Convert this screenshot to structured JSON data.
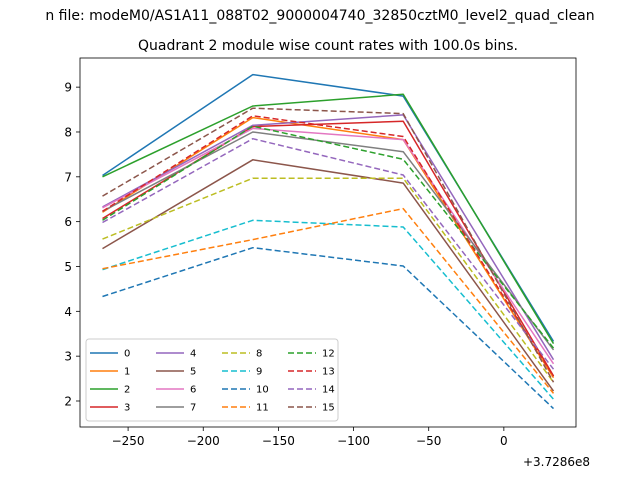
{
  "figure": {
    "suptitle": "n file: modeM0/AS1A11_088T02_9000004740_32850cztM0_level2_quad_clean",
    "title": "Quadrant 2 module wise count rates with 100.0s bins.",
    "x_offset_label": "+3.7286e8"
  },
  "chart_data": {
    "type": "line",
    "title": "Quadrant 2 module wise count rates with 100.0s bins.",
    "xlabel": "",
    "ylabel": "",
    "x": [
      -267,
      -167,
      -67,
      33
    ],
    "xlim": [
      -282,
      48
    ],
    "ylim": [
      1.42,
      9.65
    ],
    "xticks": [
      -250,
      -200,
      -150,
      -100,
      -50,
      0
    ],
    "xtick_labels": [
      "−250",
      "−200",
      "−150",
      "−100",
      "−50",
      "0"
    ],
    "yticks": [
      2,
      3,
      4,
      5,
      6,
      7,
      8,
      9
    ],
    "ytick_labels": [
      "2",
      "3",
      "4",
      "5",
      "6",
      "7",
      "8",
      "9"
    ],
    "grid": false,
    "legend": {
      "position": "lower-left",
      "columns": 4
    },
    "series": [
      {
        "name": "0",
        "color": "#1f77b4",
        "dash": "solid",
        "values": [
          7.03,
          9.28,
          8.8,
          3.33
        ]
      },
      {
        "name": "1",
        "color": "#ff7f0e",
        "dash": "solid",
        "values": [
          6.21,
          8.32,
          7.83,
          2.52
        ]
      },
      {
        "name": "2",
        "color": "#2ca02c",
        "dash": "solid",
        "values": [
          7.0,
          8.58,
          8.84,
          3.28
        ]
      },
      {
        "name": "3",
        "color": "#d62728",
        "dash": "solid",
        "values": [
          6.07,
          8.12,
          8.24,
          2.56
        ]
      },
      {
        "name": "4",
        "color": "#9467bd",
        "dash": "solid",
        "values": [
          6.33,
          8.15,
          8.38,
          2.92
        ]
      },
      {
        "name": "5",
        "color": "#8c564b",
        "dash": "solid",
        "values": [
          5.4,
          7.38,
          6.86,
          2.22
        ]
      },
      {
        "name": "6",
        "color": "#e377c2",
        "dash": "solid",
        "values": [
          6.31,
          8.08,
          7.83,
          2.83
        ]
      },
      {
        "name": "7",
        "color": "#7f7f7f",
        "dash": "solid",
        "values": [
          6.23,
          8.0,
          7.56,
          3.14
        ]
      },
      {
        "name": "8",
        "color": "#bcbd22",
        "dash": "dashed",
        "values": [
          5.61,
          6.97,
          6.97,
          2.42
        ]
      },
      {
        "name": "9",
        "color": "#17becf",
        "dash": "dashed",
        "values": [
          4.93,
          6.03,
          5.88,
          2.04
        ]
      },
      {
        "name": "10",
        "color": "#1f77b4",
        "dash": "dashed",
        "values": [
          4.33,
          5.42,
          5.01,
          1.83
        ]
      },
      {
        "name": "11",
        "color": "#ff7f0e",
        "dash": "dashed",
        "values": [
          4.95,
          5.6,
          6.29,
          2.17
        ]
      },
      {
        "name": "12",
        "color": "#2ca02c",
        "dash": "dashed",
        "values": [
          6.03,
          8.13,
          7.39,
          3.18
        ]
      },
      {
        "name": "13",
        "color": "#d62728",
        "dash": "dashed",
        "values": [
          6.23,
          8.36,
          7.9,
          2.55
        ]
      },
      {
        "name": "14",
        "color": "#9467bd",
        "dash": "dashed",
        "values": [
          5.98,
          7.85,
          7.04,
          2.71
        ]
      },
      {
        "name": "15",
        "color": "#8c564b",
        "dash": "dashed",
        "values": [
          6.57,
          8.53,
          8.41,
          2.42
        ]
      }
    ]
  }
}
